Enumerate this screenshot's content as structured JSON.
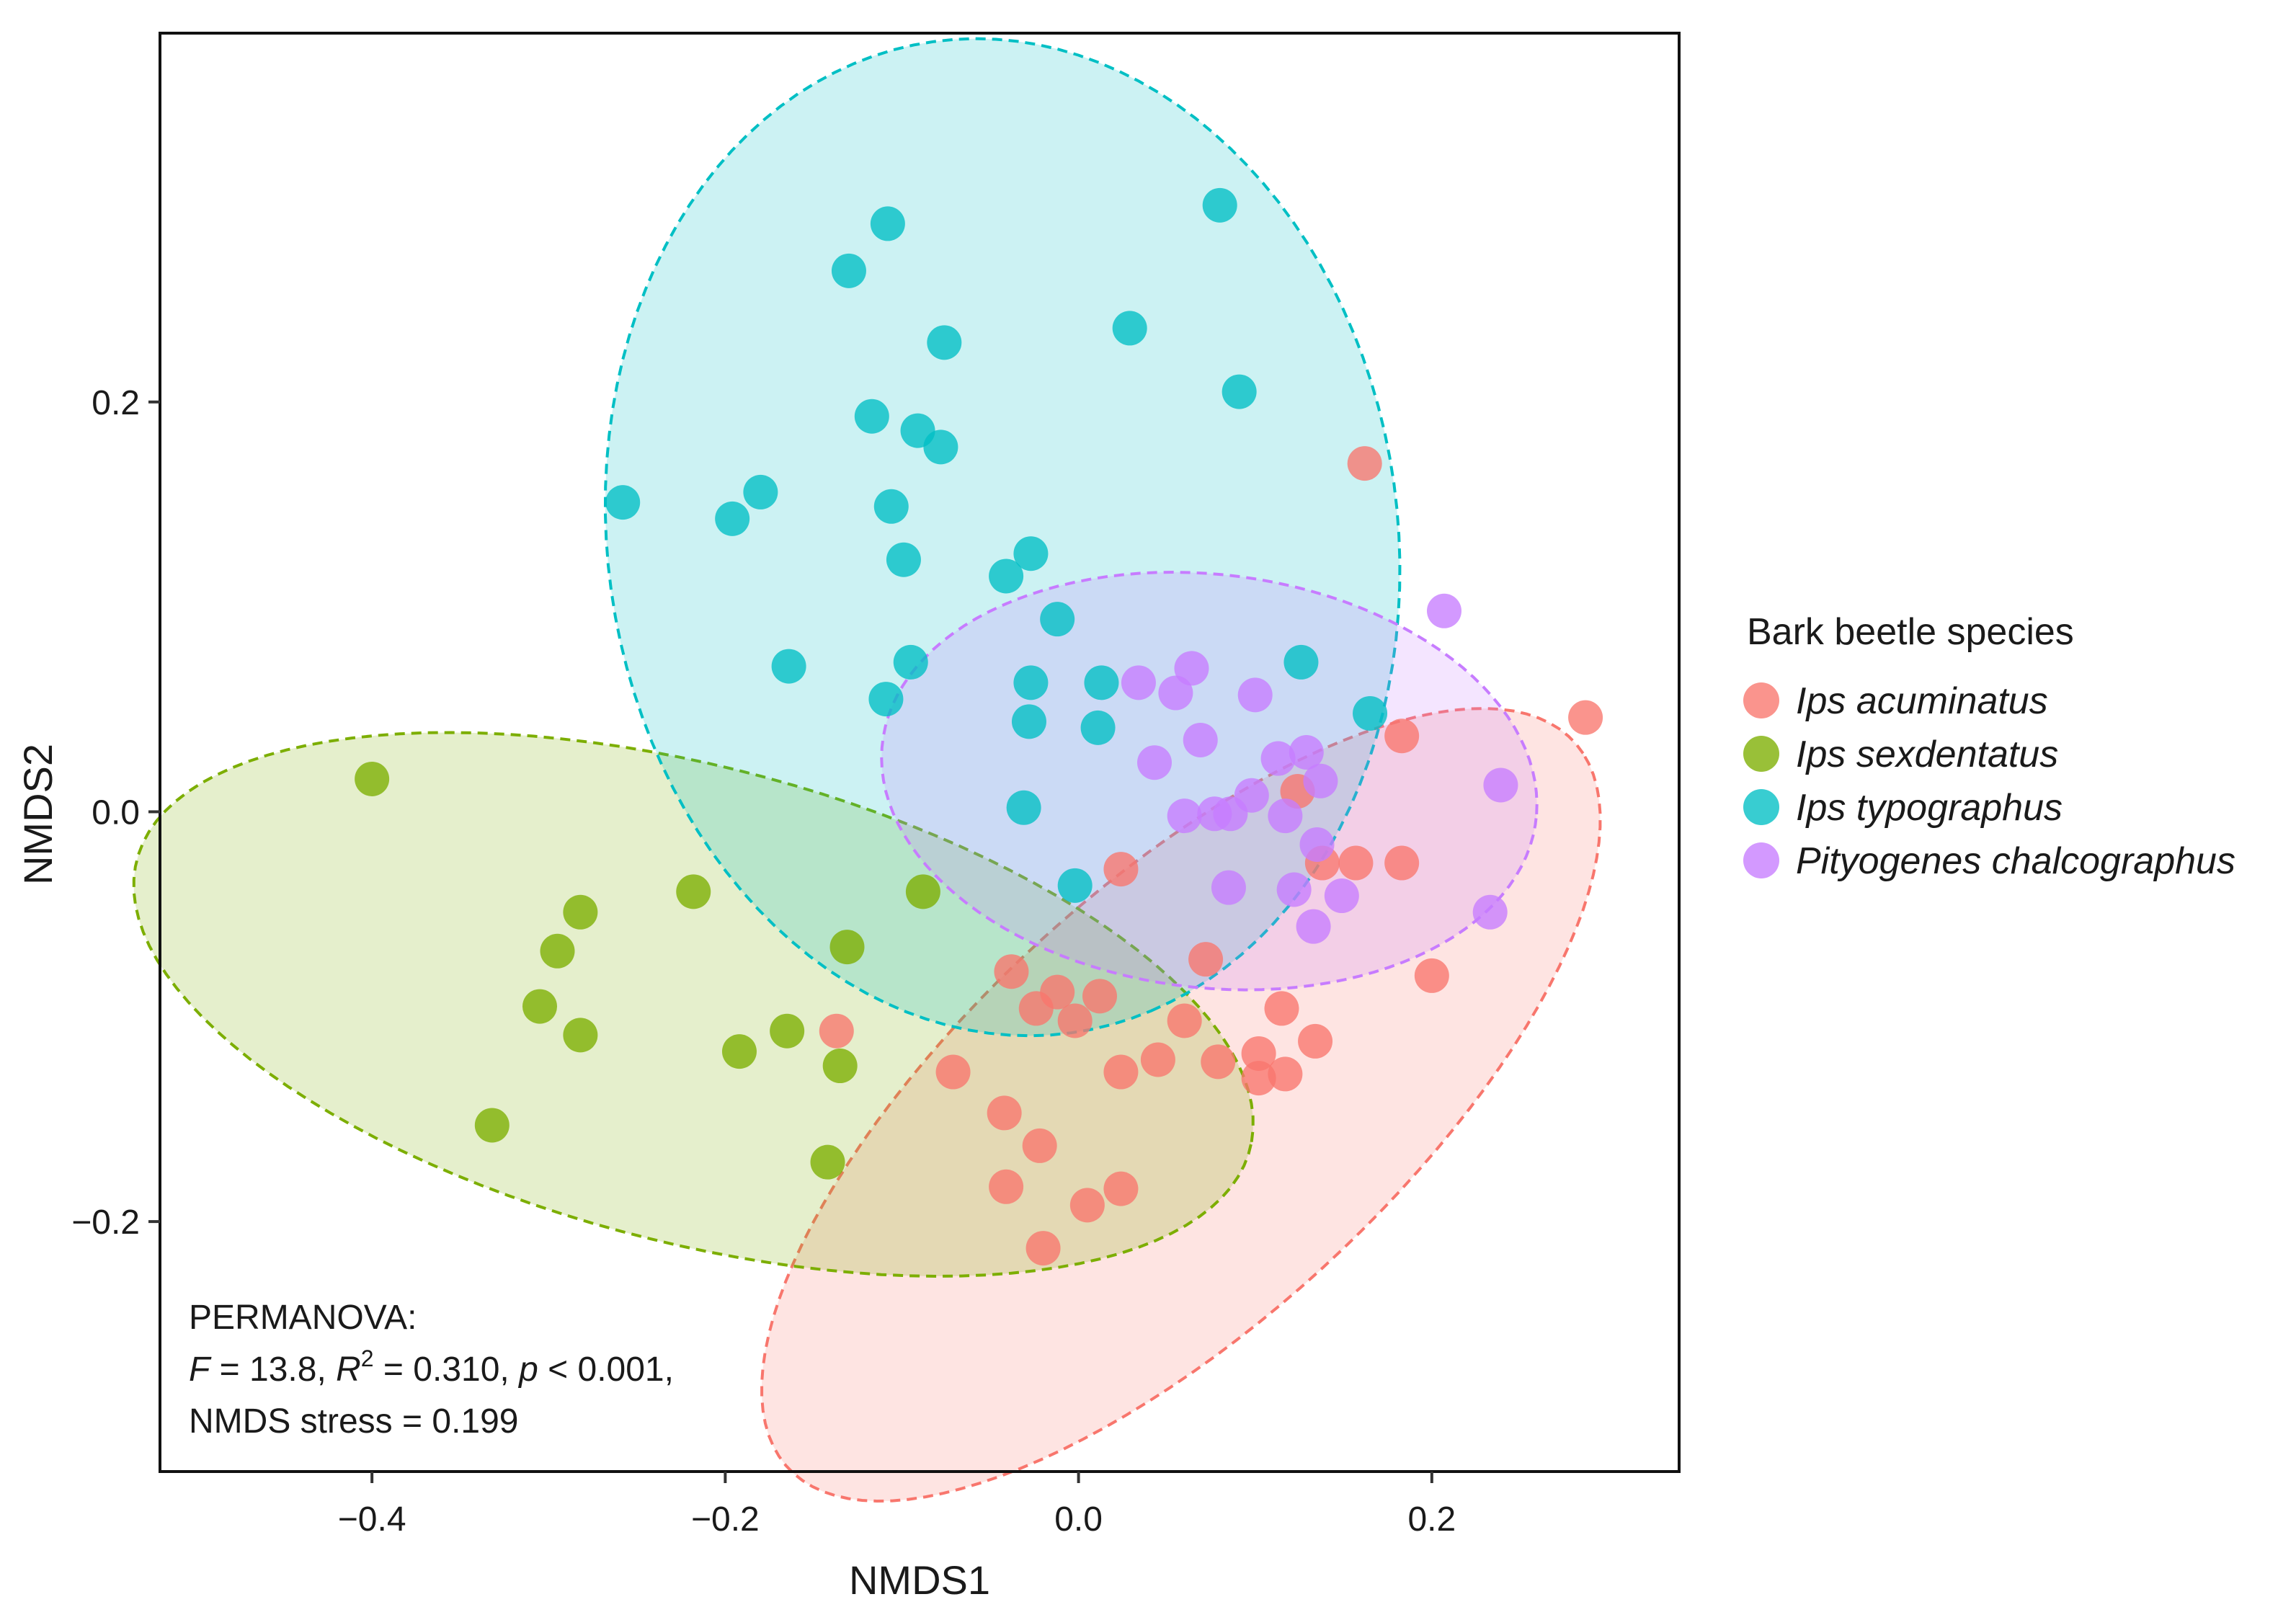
{
  "chart_data": {
    "type": "scatter",
    "xlabel": "NMDS1",
    "ylabel": "NMDS2",
    "xlim": [
      -0.52,
      0.34
    ],
    "ylim": [
      -0.322,
      0.38
    ],
    "x_ticks": [
      -0.4,
      -0.2,
      0.0,
      0.2
    ],
    "x_tick_labels": [
      "−0.4",
      "−0.2",
      "0.0",
      "0.2"
    ],
    "y_ticks": [
      -0.2,
      0.0,
      0.2
    ],
    "y_tick_labels": [
      "−0.2",
      "0.0",
      "0.2"
    ],
    "grid": false,
    "legend": {
      "title": "Bark beetle species",
      "position": "right"
    },
    "annotation": {
      "line1": "PERMANOVA:",
      "F_symbol": "F",
      "F_value": " = 13.8, ",
      "R_symbol": "R",
      "R_sup": "2",
      "R_value": " = 0.310, ",
      "p_symbol": "p",
      "p_value": " < 0.001,",
      "line3": "NMDS stress = 0.199"
    },
    "series": [
      {
        "name": "Ips acuminatus",
        "color": "#F8766D",
        "ellipse": {
          "cx": 0.058,
          "cy": -0.143,
          "rx": 0.285,
          "ry": 0.112,
          "angle_deg": 37
        },
        "points": [
          [
            0.162,
            0.17
          ],
          [
            0.287,
            0.046
          ],
          [
            0.183,
            0.037
          ],
          [
            0.124,
            0.01
          ],
          [
            0.157,
            -0.025
          ],
          [
            0.138,
            -0.025
          ],
          [
            0.183,
            -0.025
          ],
          [
            0.024,
            -0.028
          ],
          [
            0.2,
            -0.08
          ],
          [
            0.072,
            -0.072
          ],
          [
            -0.038,
            -0.078
          ],
          [
            -0.012,
            -0.088
          ],
          [
            0.012,
            -0.09
          ],
          [
            -0.024,
            -0.096
          ],
          [
            0.115,
            -0.096
          ],
          [
            -0.002,
            -0.102
          ],
          [
            0.06,
            -0.102
          ],
          [
            -0.137,
            -0.107
          ],
          [
            0.134,
            -0.112
          ],
          [
            0.045,
            -0.121
          ],
          [
            0.079,
            -0.122
          ],
          [
            0.102,
            -0.118
          ],
          [
            -0.071,
            -0.127
          ],
          [
            0.024,
            -0.127
          ],
          [
            0.102,
            -0.13
          ],
          [
            0.117,
            -0.128
          ],
          [
            -0.042,
            -0.147
          ],
          [
            -0.022,
            -0.163
          ],
          [
            -0.041,
            -0.183
          ],
          [
            0.005,
            -0.192
          ],
          [
            0.024,
            -0.184
          ],
          [
            -0.02,
            -0.213
          ]
        ]
      },
      {
        "name": "Ips sexdentatus",
        "color": "#7CAE00",
        "ellipse": {
          "cx": -0.218,
          "cy": -0.094,
          "rx": 0.323,
          "ry": 0.117,
          "angle_deg": -12
        },
        "points": [
          [
            -0.4,
            0.016
          ],
          [
            -0.218,
            -0.039
          ],
          [
            -0.088,
            -0.039
          ],
          [
            -0.282,
            -0.049
          ],
          [
            -0.295,
            -0.068
          ],
          [
            -0.131,
            -0.066
          ],
          [
            -0.305,
            -0.095
          ],
          [
            -0.282,
            -0.109
          ],
          [
            -0.192,
            -0.117
          ],
          [
            -0.165,
            -0.107
          ],
          [
            -0.135,
            -0.124
          ],
          [
            -0.332,
            -0.153
          ],
          [
            -0.142,
            -0.171
          ]
        ]
      },
      {
        "name": "Ips typographus",
        "color": "#00BFC4",
        "ellipse": {
          "cx": -0.043,
          "cy": 0.134,
          "rx": 0.246,
          "ry": 0.222,
          "angle_deg": -70
        },
        "points": [
          [
            0.08,
            0.296
          ],
          [
            -0.108,
            0.287
          ],
          [
            -0.13,
            0.264
          ],
          [
            0.029,
            0.236
          ],
          [
            -0.076,
            0.229
          ],
          [
            0.091,
            0.205
          ],
          [
            -0.117,
            0.193
          ],
          [
            -0.091,
            0.186
          ],
          [
            -0.078,
            0.178
          ],
          [
            -0.258,
            0.151
          ],
          [
            -0.18,
            0.156
          ],
          [
            -0.196,
            0.143
          ],
          [
            -0.106,
            0.149
          ],
          [
            -0.099,
            0.123
          ],
          [
            -0.027,
            0.126
          ],
          [
            -0.041,
            0.115
          ],
          [
            -0.012,
            0.094
          ],
          [
            -0.164,
            0.071
          ],
          [
            -0.095,
            0.073
          ],
          [
            -0.109,
            0.055
          ],
          [
            -0.027,
            0.063
          ],
          [
            0.013,
            0.063
          ],
          [
            0.126,
            0.073
          ],
          [
            -0.028,
            0.044
          ],
          [
            0.011,
            0.041
          ],
          [
            0.165,
            0.048
          ],
          [
            -0.031,
            0.002
          ],
          [
            -0.002,
            -0.036
          ]
        ]
      },
      {
        "name": "Pityogenes chalcographus",
        "color": "#C77CFF",
        "ellipse": {
          "cx": 0.074,
          "cy": 0.015,
          "rx": 0.186,
          "ry": 0.101,
          "angle_deg": -5
        },
        "points": [
          [
            0.207,
            0.098
          ],
          [
            0.034,
            0.063
          ],
          [
            0.064,
            0.07
          ],
          [
            0.055,
            0.058
          ],
          [
            0.1,
            0.057
          ],
          [
            0.069,
            0.035
          ],
          [
            0.043,
            0.024
          ],
          [
            0.113,
            0.026
          ],
          [
            0.129,
            0.029
          ],
          [
            0.137,
            0.015
          ],
          [
            0.239,
            0.013
          ],
          [
            0.098,
            0.008
          ],
          [
            0.06,
            -0.002
          ],
          [
            0.077,
            -0.001
          ],
          [
            0.086,
            -0.001
          ],
          [
            0.117,
            -0.002
          ],
          [
            0.135,
            -0.016
          ],
          [
            0.085,
            -0.037
          ],
          [
            0.122,
            -0.038
          ],
          [
            0.149,
            -0.041
          ],
          [
            0.233,
            -0.049
          ],
          [
            0.133,
            -0.056
          ]
        ]
      }
    ]
  }
}
